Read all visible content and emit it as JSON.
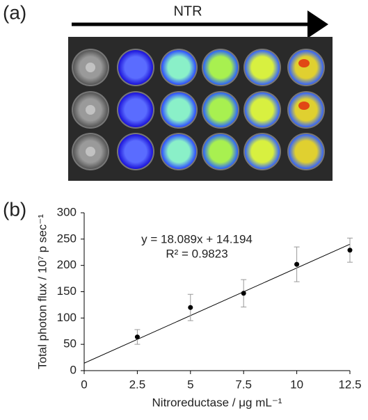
{
  "figure": {
    "panel_a_label": "(a)",
    "arrow_label": "NTR",
    "panel_b_label": "(b)"
  },
  "chart_data": {
    "type": "scatter",
    "annotations": [
      "y = 18.089x + 14.194",
      "R² = 0.9823"
    ],
    "xlabel": "Nitroreductase / μg mL⁻¹",
    "ylabel": "Total photon flux / 10⁷ p sec⁻¹",
    "x": [
      2.5,
      5,
      7.5,
      10,
      12.5
    ],
    "series": [
      {
        "color": "#000000",
        "error_color": "#999999",
        "values": [
          64,
          120,
          147,
          202,
          229
        ],
        "errors": [
          14,
          25,
          26,
          33,
          23
        ]
      }
    ],
    "trendline": {
      "slope": 18.089,
      "intercept": 14.194,
      "color": "#000000"
    },
    "xlim": [
      0,
      12.5
    ],
    "xticks": [
      0,
      2.5,
      5,
      7.5,
      10,
      12.5
    ],
    "ylim": [
      0,
      300
    ],
    "yticks": [
      0,
      50,
      100,
      150,
      200,
      250,
      300
    ]
  }
}
